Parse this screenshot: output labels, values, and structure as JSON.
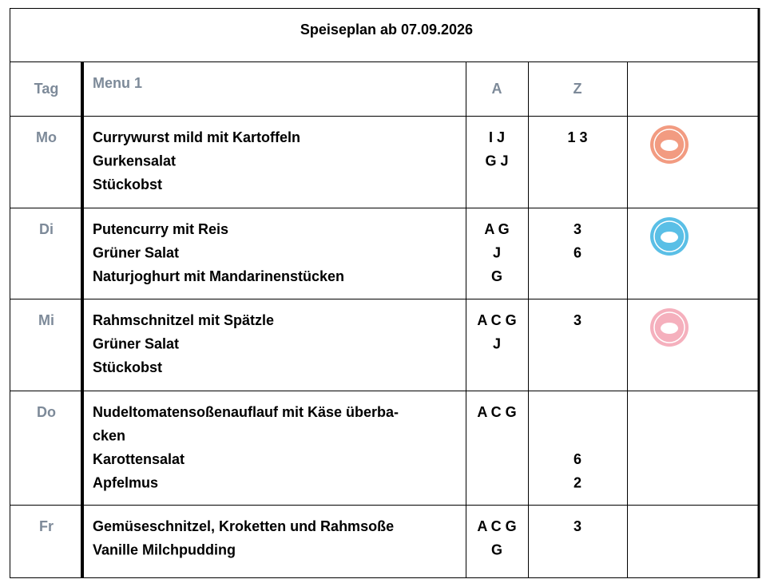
{
  "title": "Speiseplan ab 07.09.2026",
  "header": [
    "Tag",
    "Menu 1",
    "A",
    "Z"
  ],
  "rows": [
    {
      "day": "Mo",
      "badge_color": "#f0896b",
      "lines": [
        {
          "menu": "Currywurst mild mit Kartoffeln",
          "a": "I J",
          "z": "1 3"
        },
        {
          "menu": "Gurkensalat",
          "a": "G J"
        },
        {
          "menu": "Stückobst"
        }
      ]
    },
    {
      "day": "Di",
      "badge_color": "#3db4e2",
      "lines": [
        {
          "menu": "Putencurry mit Reis",
          "a": "A G",
          "z": "3"
        },
        {
          "menu": "Grüner Salat",
          "a": "J",
          "z": "6"
        },
        {
          "menu": "Naturjoghurt mit Mandarinenstücken",
          "a": "G"
        }
      ]
    },
    {
      "day": "Mi",
      "badge_color": "#f3a2b2",
      "lines": [
        {
          "menu": "Rahmschnitzel mit Spätzle",
          "a": "A C G",
          "z": "3"
        },
        {
          "menu": "Grüner Salat",
          "a": "J"
        },
        {
          "menu": "Stückobst"
        }
      ]
    },
    {
      "day": "Do",
      "lines": [
        {
          "menu": "Nudeltomatensoßenauflauf mit Käse überba-",
          "a": "A C G"
        },
        {
          "menu": "cken"
        },
        {
          "menu": "Karottensalat",
          "z": "6"
        },
        {
          "menu": "Apfelmus",
          "z": "2"
        }
      ]
    },
    {
      "day": "Fr",
      "lines": [
        {
          "menu": "Gemüseschnitzel, Kroketten und Rahmsoße",
          "a": "A C G",
          "z": "3"
        },
        {
          "menu": "Vanille Milchpudding",
          "a": "G"
        }
      ]
    }
  ]
}
